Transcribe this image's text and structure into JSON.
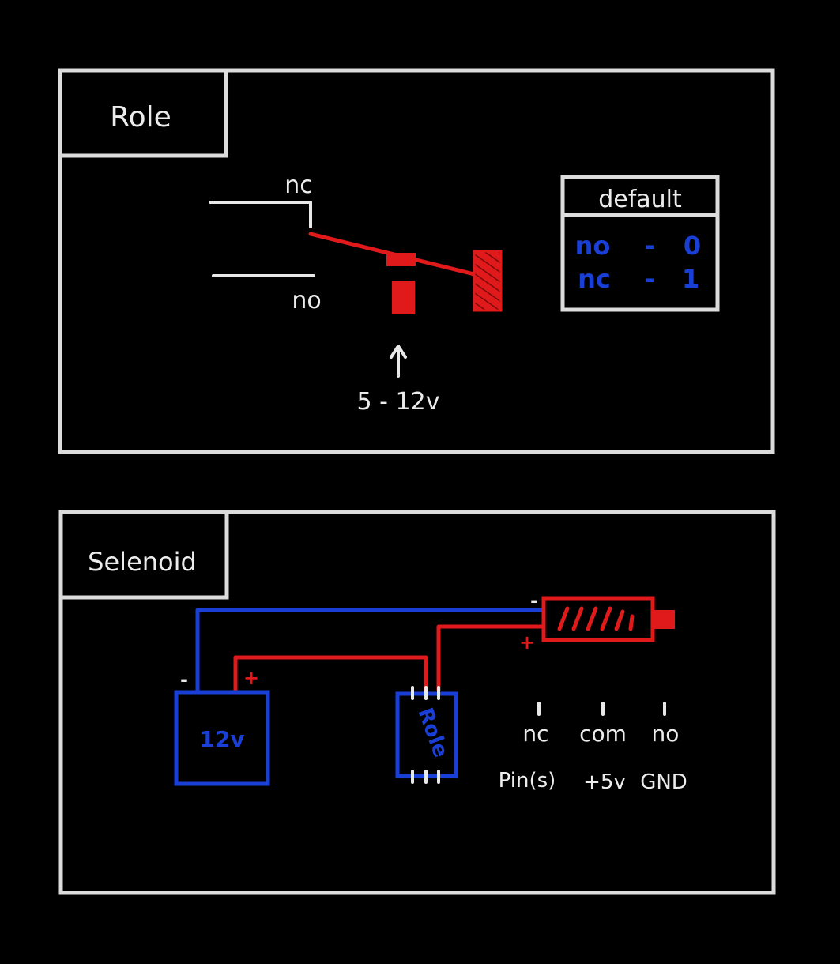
{
  "relay_panel": {
    "title": "Role",
    "nc_label": "nc",
    "no_label": "no",
    "voltage_label": "5 - 12v",
    "default_table": {
      "header": "default",
      "rows": [
        {
          "name": "no",
          "dash": "-",
          "value": "0"
        },
        {
          "name": "nc",
          "dash": "-",
          "value": "1"
        }
      ]
    }
  },
  "solenoid_panel": {
    "title": "Selenoid",
    "battery_label": "12v",
    "battery_minus": "-",
    "battery_plus": "+",
    "relay_chip_label": "Role",
    "solenoid_minus": "-",
    "solenoid_plus": "+",
    "top_pins": [
      "nc",
      "com",
      "no"
    ],
    "bottom_pins": [
      "Pin(s)",
      "+5v",
      "GND"
    ]
  },
  "colors": {
    "background": "#000000",
    "chalk": "#e8e8e8",
    "red": "#e0191b",
    "blue": "#1a3fd6"
  }
}
